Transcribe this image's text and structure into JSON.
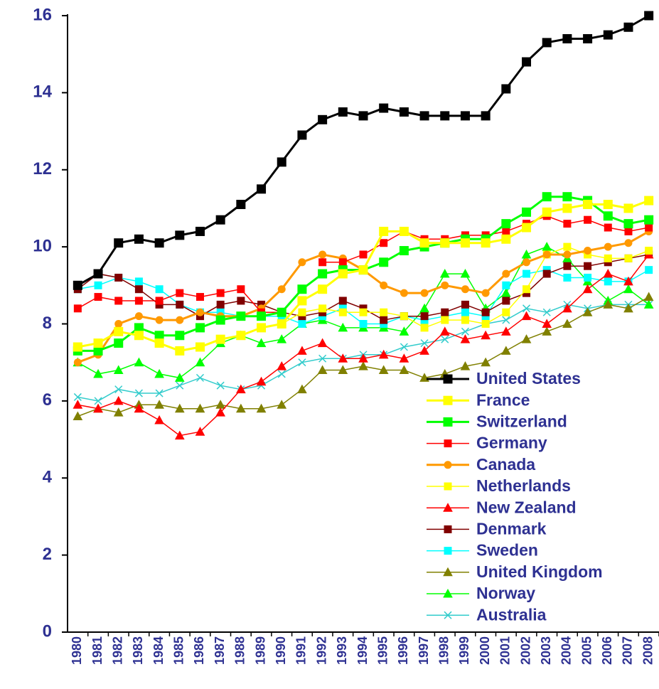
{
  "chart_data": {
    "type": "line",
    "x": [
      "1980",
      "1981",
      "1982",
      "1983",
      "1984",
      "1985",
      "1986",
      "1987",
      "1988",
      "1989",
      "1990",
      "1991",
      "1992",
      "1993",
      "1994",
      "1995",
      "1996",
      "1997",
      "1998",
      "1999",
      "2000",
      "2001",
      "2002",
      "2003",
      "2004",
      "2005",
      "2006",
      "2007",
      "2008"
    ],
    "ylim": [
      0,
      16
    ],
    "yticks": [
      0,
      2,
      4,
      6,
      8,
      10,
      12,
      14,
      16
    ],
    "legend": "lower right",
    "series": [
      {
        "name": "United States",
        "color": "#000000",
        "marker": "square",
        "line_width": 3,
        "values": [
          9.0,
          9.3,
          10.1,
          10.2,
          10.1,
          10.3,
          10.4,
          10.7,
          11.1,
          11.5,
          12.2,
          12.9,
          13.3,
          13.5,
          13.4,
          13.6,
          13.5,
          13.4,
          13.4,
          13.4,
          13.4,
          14.1,
          14.8,
          15.3,
          15.4,
          15.4,
          15.5,
          15.7,
          16.0
        ]
      },
      {
        "name": "France",
        "color": "#ffff00",
        "marker": "square",
        "line_width": 3,
        "values": [
          7.4,
          7.5,
          7.8,
          7.7,
          7.5,
          7.3,
          7.4,
          7.6,
          7.7,
          7.9,
          8.0,
          8.6,
          8.9,
          9.3,
          9.4,
          10.4,
          10.4,
          10.1,
          10.1,
          10.1,
          10.1,
          10.2,
          10.5,
          10.9,
          11.0,
          11.1,
          11.1,
          11.0,
          11.2
        ]
      },
      {
        "name": "Switzerland",
        "color": "#00ff00",
        "marker": "square",
        "line_width": 3,
        "values": [
          7.3,
          7.3,
          7.5,
          7.9,
          7.7,
          7.7,
          7.9,
          8.1,
          8.2,
          8.2,
          8.3,
          8.9,
          9.3,
          9.4,
          9.4,
          9.6,
          9.9,
          10.0,
          10.1,
          10.2,
          10.2,
          10.6,
          10.9,
          11.3,
          11.3,
          11.2,
          10.8,
          10.6,
          10.7
        ]
      },
      {
        "name": "Germany",
        "color": "#ff0000",
        "marker": "square",
        "line_width": 1.5,
        "values": [
          8.4,
          8.7,
          8.6,
          8.6,
          8.6,
          8.8,
          8.7,
          8.8,
          8.9,
          8.3,
          8.3,
          null,
          9.6,
          9.6,
          9.8,
          10.1,
          10.4,
          10.2,
          10.2,
          10.3,
          10.3,
          10.4,
          10.6,
          10.8,
          10.6,
          10.7,
          10.5,
          10.4,
          10.5
        ]
      },
      {
        "name": "Canada",
        "color": "#ff9900",
        "marker": "circle",
        "line_width": 3,
        "values": [
          7.0,
          7.2,
          8.0,
          8.2,
          8.1,
          8.1,
          8.3,
          8.2,
          8.2,
          8.4,
          8.9,
          9.6,
          9.8,
          9.7,
          9.4,
          9.0,
          8.8,
          8.8,
          9.0,
          8.9,
          8.8,
          9.3,
          9.6,
          9.8,
          9.8,
          9.9,
          10.0,
          10.1,
          10.4
        ]
      },
      {
        "name": "Netherlands",
        "color": "#ffff00",
        "marker": "square",
        "line_width": 1.5,
        "values": [
          7.4,
          7.5,
          7.8,
          7.7,
          7.5,
          7.3,
          7.4,
          7.6,
          7.7,
          7.9,
          8.0,
          8.3,
          8.4,
          8.3,
          8.3,
          8.3,
          8.2,
          7.9,
          8.1,
          8.1,
          8.0,
          8.3,
          8.9,
          9.8,
          10.0,
          9.8,
          9.7,
          9.7,
          9.9
        ]
      },
      {
        "name": "New Zealand",
        "color": "#ff0000",
        "marker": "triangle",
        "line_width": 1.5,
        "values": [
          5.9,
          5.8,
          6.0,
          5.8,
          5.5,
          5.1,
          5.2,
          5.7,
          6.3,
          6.5,
          6.9,
          7.3,
          7.5,
          7.1,
          7.1,
          7.2,
          7.1,
          7.3,
          7.8,
          7.6,
          7.7,
          7.8,
          8.2,
          8.0,
          8.4,
          8.9,
          9.3,
          9.1,
          9.8
        ]
      },
      {
        "name": "Denmark",
        "color": "#800000",
        "marker": "square",
        "line_width": 1.5,
        "values": [
          8.9,
          9.3,
          9.2,
          8.9,
          8.5,
          8.5,
          8.2,
          8.5,
          8.6,
          8.5,
          8.3,
          8.2,
          8.3,
          8.6,
          8.4,
          8.1,
          8.2,
          8.2,
          8.3,
          8.5,
          8.3,
          8.6,
          8.8,
          9.3,
          9.5,
          9.5,
          9.6,
          9.7,
          9.8
        ]
      },
      {
        "name": "Sweden",
        "color": "#00ffff",
        "marker": "square",
        "line_width": 1.5,
        "values": [
          8.9,
          9.0,
          9.2,
          9.1,
          8.9,
          8.5,
          8.3,
          8.3,
          8.2,
          8.2,
          8.2,
          8.0,
          8.2,
          8.4,
          8.0,
          8.0,
          8.2,
          8.1,
          8.2,
          8.3,
          8.2,
          9.0,
          9.3,
          9.4,
          9.2,
          9.2,
          9.1,
          9.1,
          9.4
        ]
      },
      {
        "name": "United Kingdom",
        "color": "#808000",
        "marker": "triangle",
        "line_width": 1.5,
        "values": [
          5.6,
          5.8,
          5.7,
          5.9,
          5.9,
          5.8,
          5.8,
          5.9,
          5.8,
          5.8,
          5.9,
          6.3,
          6.8,
          6.8,
          6.9,
          6.8,
          6.8,
          6.6,
          6.7,
          6.9,
          7.0,
          7.3,
          7.6,
          7.8,
          8.0,
          8.3,
          8.5,
          8.4,
          8.7
        ]
      },
      {
        "name": "Norway",
        "color": "#00ff00",
        "marker": "triangle",
        "line_width": 1.5,
        "values": [
          7.0,
          6.7,
          6.8,
          7.0,
          6.7,
          6.6,
          7.0,
          7.5,
          7.7,
          7.5,
          7.6,
          8.0,
          8.1,
          7.9,
          7.9,
          7.9,
          7.8,
          8.4,
          9.3,
          9.3,
          8.4,
          8.8,
          9.8,
          10.0,
          9.7,
          9.1,
          8.6,
          8.9,
          8.5
        ]
      },
      {
        "name": "Australia",
        "color": "#33cccc",
        "marker": "x",
        "line_width": 1.5,
        "values": [
          6.1,
          6.0,
          6.3,
          6.2,
          6.2,
          6.4,
          6.6,
          6.4,
          6.3,
          6.4,
          6.7,
          7.0,
          7.1,
          7.1,
          7.2,
          7.2,
          7.4,
          7.5,
          7.6,
          7.8,
          8.0,
          8.1,
          8.4,
          8.3,
          8.5,
          8.4,
          8.5,
          8.5,
          8.5
        ]
      }
    ]
  }
}
